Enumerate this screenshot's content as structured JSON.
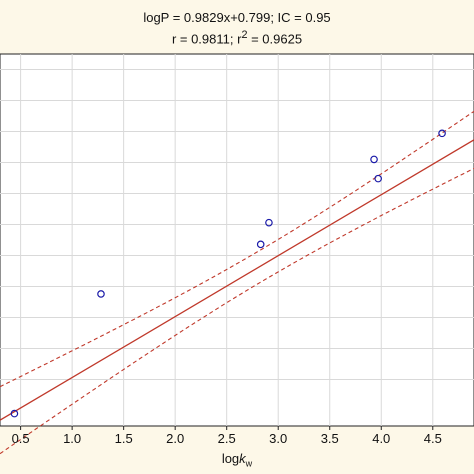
{
  "chart_data": {
    "type": "scatter",
    "title_line1": "logP = 0.9829x+0.799; IC = 0.95",
    "title_line2_prefix": "r = 0.9811; r",
    "title_line2_sup": "2",
    "title_line2_suffix": " = 0.9625",
    "xlabel_main": "log",
    "xlabel_italic": "k",
    "xlabel_sub": "w",
    "ylabel": "",
    "xlim": [
      0.3,
      4.9
    ],
    "ylim": [
      1.0,
      7.0
    ],
    "x_ticks": [
      "0.5",
      "1.0",
      "1.5",
      "2.0",
      "2.5",
      "3.0",
      "3.5",
      "4.0",
      "4.5"
    ],
    "x_tick_values": [
      0.5,
      1.0,
      1.5,
      2.0,
      2.5,
      3.0,
      3.5,
      4.0,
      4.5
    ],
    "y_grid_values": [
      1.75,
      2.25,
      2.75,
      3.25,
      3.75,
      4.25,
      4.75,
      5.25,
      5.75,
      6.25,
      6.75
    ],
    "points": [
      {
        "x": 0.44,
        "y": 1.2
      },
      {
        "x": 1.28,
        "y": 3.13
      },
      {
        "x": 2.83,
        "y": 3.93
      },
      {
        "x": 2.91,
        "y": 4.28
      },
      {
        "x": 3.93,
        "y": 5.3
      },
      {
        "x": 3.97,
        "y": 4.99
      },
      {
        "x": 4.59,
        "y": 5.72
      }
    ],
    "regression": {
      "slope": 0.9829,
      "intercept": 0.799
    },
    "confidence_band_halfwidth_center": 0.26,
    "colors": {
      "background": "#fdf8e8",
      "plot_bg": "#ffffff",
      "grid": "#d9d9d9",
      "fit_line": "#c0392b",
      "points": "#1a1aa8"
    }
  }
}
